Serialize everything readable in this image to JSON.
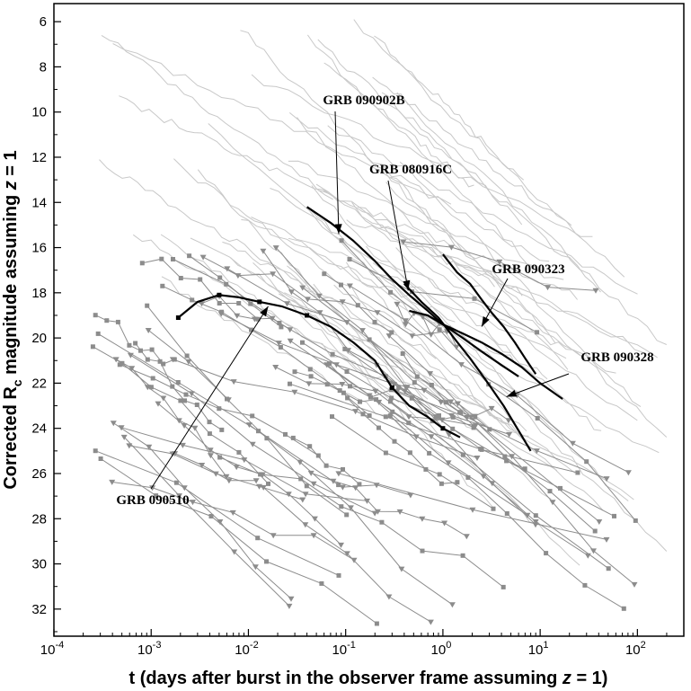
{
  "chart_data": {
    "type": "line",
    "title": "",
    "xlabel_parts": [
      "t (days after burst in the observer frame assuming ",
      "z",
      " = 1)"
    ],
    "ylabel_parts": [
      "Corrected R",
      "c",
      " magnitude assuming ",
      "z",
      " = 1"
    ],
    "xscale": "log",
    "xlim": [
      0.0001,
      300
    ],
    "ylim": [
      33.2,
      5.2
    ],
    "y_inverted": true,
    "grid": false,
    "legend": "none",
    "x_ticks": [
      {
        "base": "10",
        "exp": "-4"
      },
      {
        "base": "10",
        "exp": "-3"
      },
      {
        "base": "10",
        "exp": "-2"
      },
      {
        "base": "10",
        "exp": "-1"
      },
      {
        "base": "10",
        "exp": "0"
      },
      {
        "base": "10",
        "exp": "1"
      },
      {
        "base": "10",
        "exp": "2"
      }
    ],
    "y_ticks": [
      "6",
      "8",
      "10",
      "12",
      "14",
      "16",
      "18",
      "20",
      "22",
      "24",
      "26",
      "28",
      "30",
      "32"
    ],
    "colors": {
      "background_afterglows": "#c8c8c8",
      "faint_afterglows": "#8c8c8c",
      "fermi_lat": "#000000"
    },
    "highlighted": [
      {
        "name": "GRB 090902B",
        "x": [
          0.04,
          0.07,
          0.12,
          0.2,
          0.3,
          0.45,
          0.7,
          1.0,
          1.6,
          2.5,
          4.0,
          6.0
        ],
        "y": [
          14.2,
          14.9,
          15.7,
          16.6,
          17.4,
          18.1,
          18.8,
          19.4,
          20.0,
          20.6,
          21.2,
          21.7
        ]
      },
      {
        "name": "GRB 080916C",
        "x": [
          0.45,
          0.7,
          1.0,
          1.6,
          2.5,
          4.0,
          6.5,
          10,
          17
        ],
        "y": [
          18.8,
          19.0,
          19.4,
          19.8,
          20.2,
          20.7,
          21.3,
          22.0,
          22.7
        ]
      },
      {
        "name": "GRB 090323",
        "x": [
          1.0,
          1.4,
          1.9,
          2.5,
          3.2,
          4.2,
          5.5,
          7.0,
          9.0
        ],
        "y": [
          16.3,
          17.1,
          17.6,
          18.3,
          18.9,
          19.5,
          20.2,
          20.9,
          21.6
        ]
      },
      {
        "name": "GRB 090328",
        "x": [
          0.4,
          0.6,
          0.9,
          1.3,
          1.9,
          2.8,
          4.2,
          6.0,
          8.0
        ],
        "y": [
          17.6,
          18.4,
          19.1,
          20.0,
          20.9,
          21.9,
          23.0,
          24.1,
          25.0
        ]
      },
      {
        "name": "GRB 090510",
        "x": [
          0.0019,
          0.003,
          0.005,
          0.008,
          0.013,
          0.022,
          0.04,
          0.07,
          0.12,
          0.2,
          0.3,
          0.45,
          0.7,
          1.0,
          1.5
        ],
        "y": [
          19.1,
          18.4,
          18.1,
          18.2,
          18.4,
          18.6,
          19.0,
          19.5,
          20.2,
          21.0,
          22.2,
          23.0,
          23.5,
          24.0,
          24.4
        ]
      }
    ],
    "annotations": [
      {
        "label": "GRB 090902B",
        "arrow_to": [
          0.085,
          15.4
        ]
      },
      {
        "label": "GRB 080916C",
        "arrow_to": [
          0.44,
          17.9
        ]
      },
      {
        "label": "GRB 090323",
        "arrow_to": [
          2.5,
          19.5
        ]
      },
      {
        "label": "GRB 090328",
        "arrow_to": [
          4.5,
          22.6
        ]
      },
      {
        "label": "GRB 090510",
        "arrow_to": [
          0.016,
          18.6
        ]
      }
    ],
    "background_series_count": 55,
    "faint_series_count": 60
  }
}
